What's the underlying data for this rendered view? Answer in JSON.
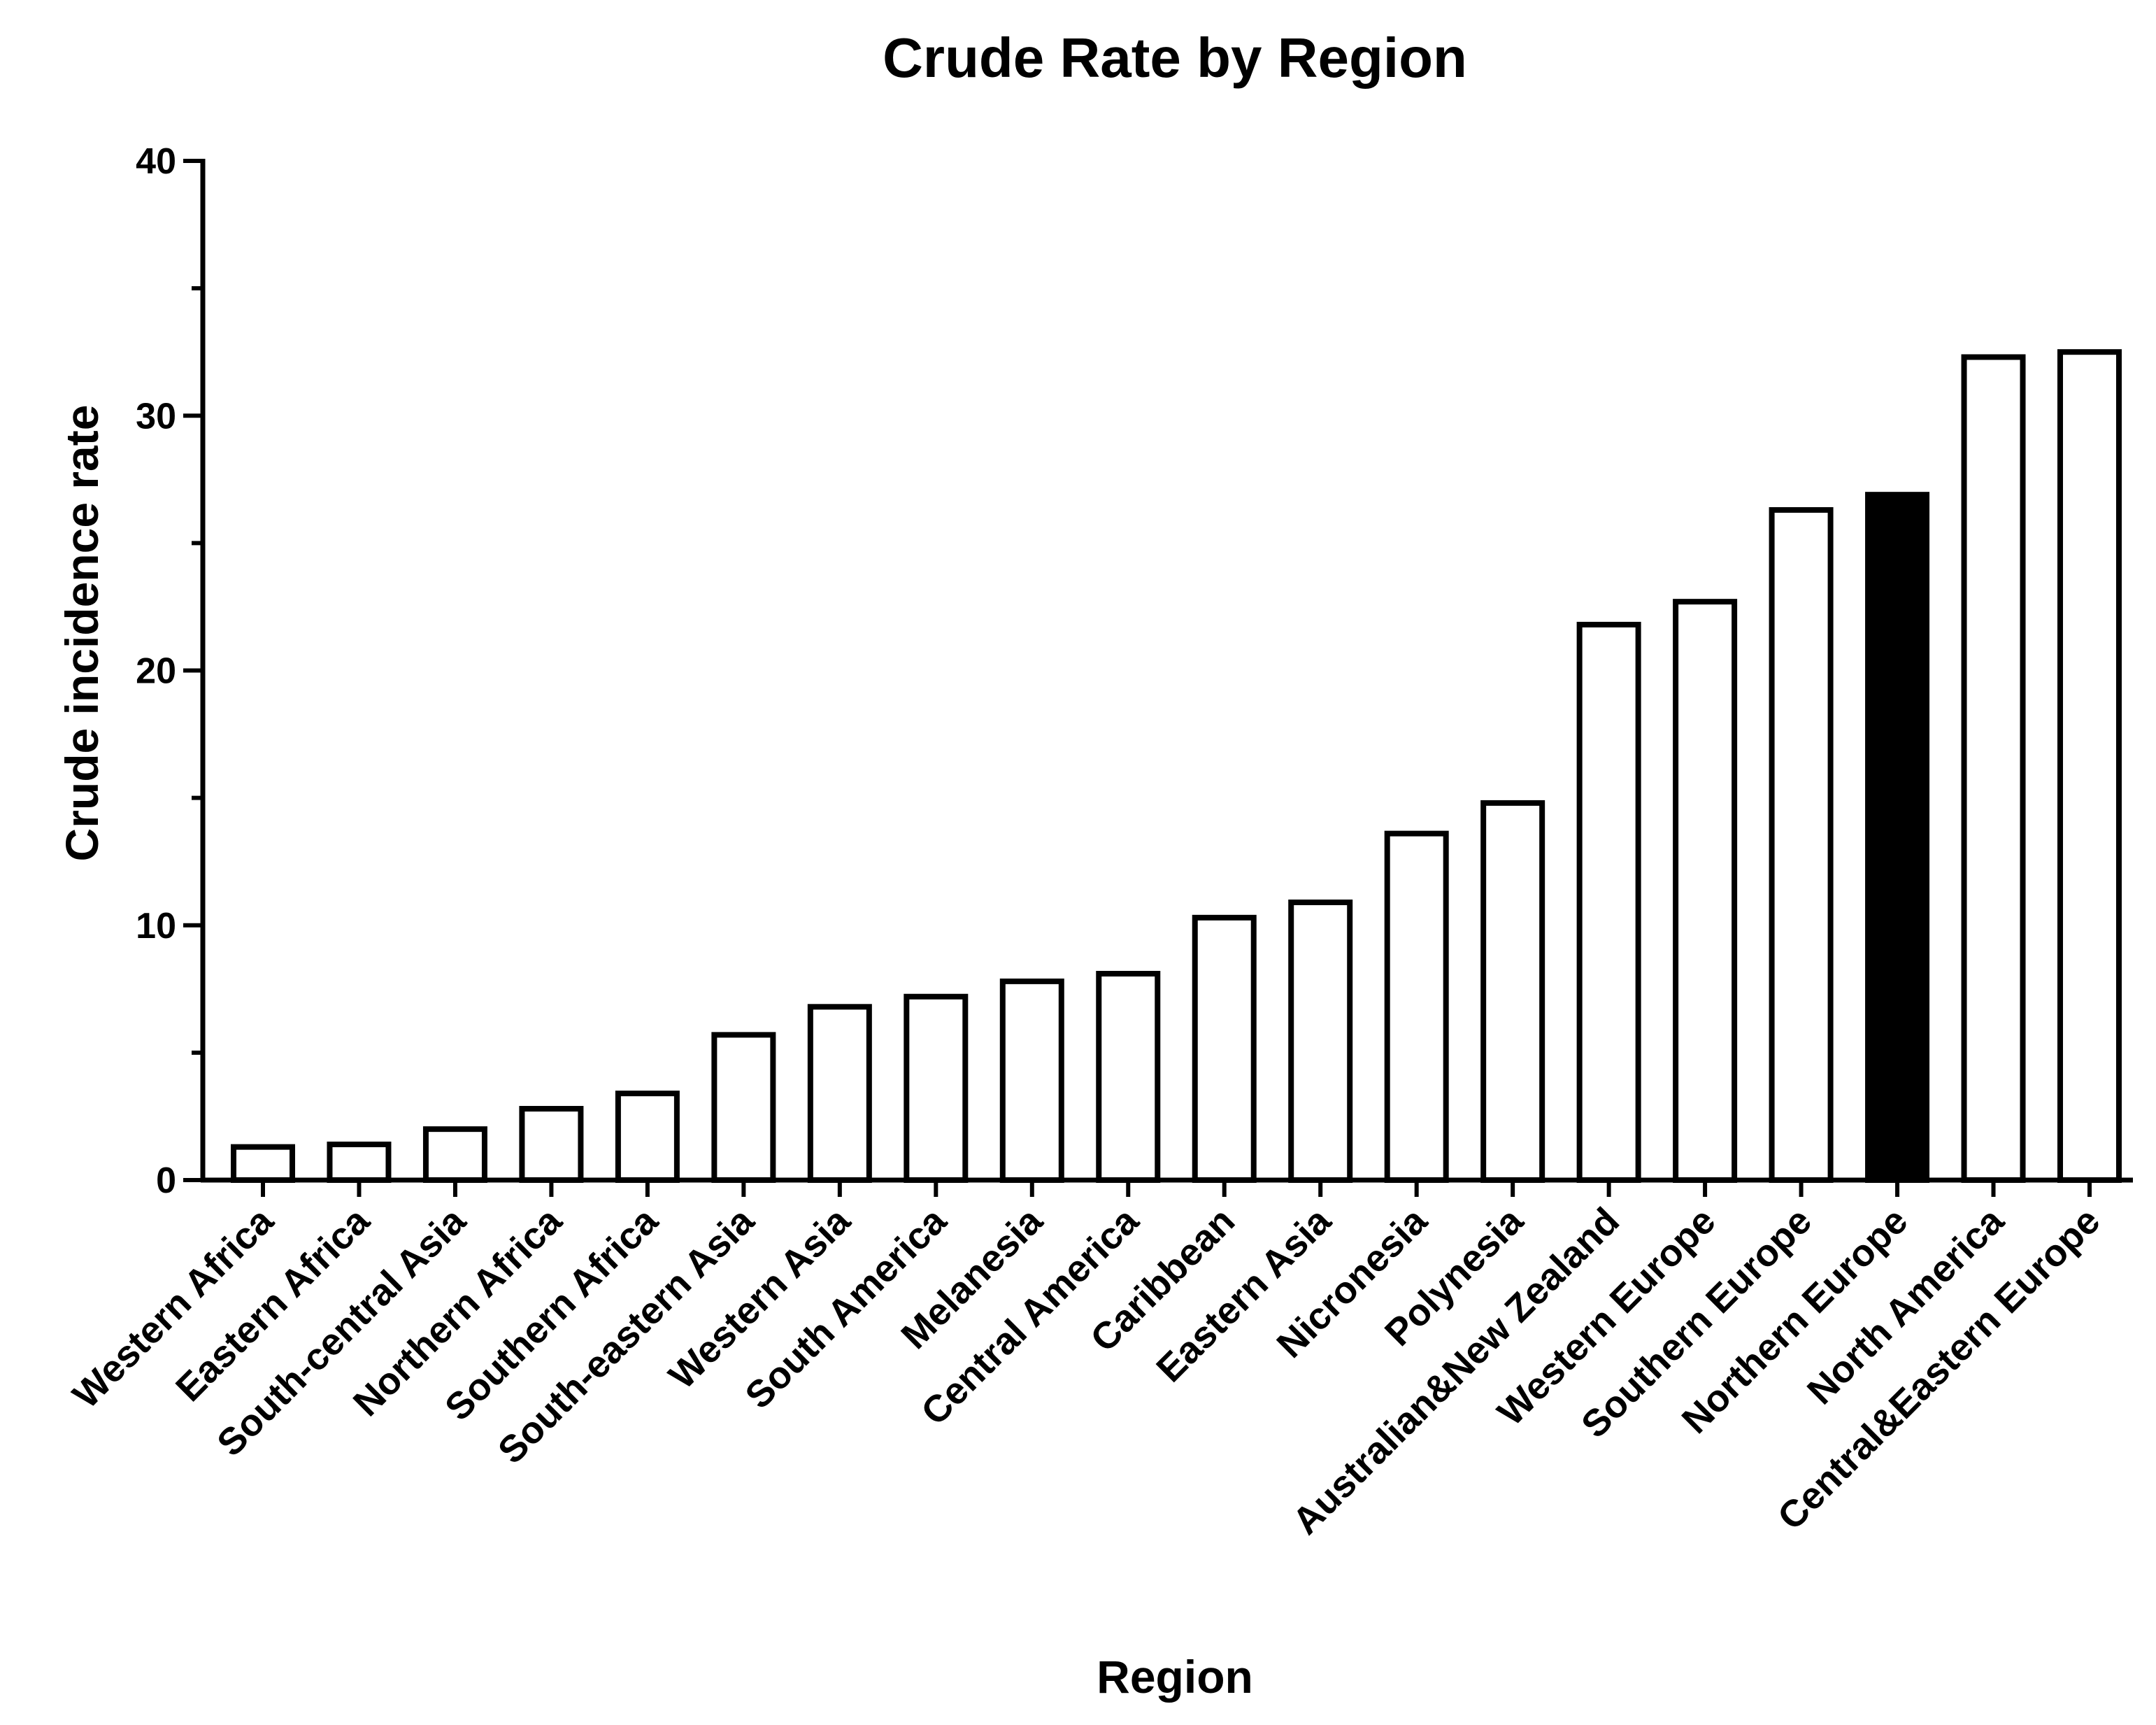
{
  "chart_data": {
    "type": "bar",
    "title": "Crude Rate by Region",
    "xlabel": "Region",
    "ylabel": "Crude incidence rate",
    "ylim": [
      0,
      40
    ],
    "yticks": [
      0,
      10,
      20,
      30,
      40
    ],
    "grid": false,
    "categories": [
      "Western Africa",
      "Eastern Africa",
      "South-central Asia",
      "Northern Africa",
      "Southern Africa",
      "South-eastern Asia",
      "Western Asia",
      "South America",
      "Melanesia",
      "Central America",
      "Caribbean",
      "Eastern Asia",
      "Nicronesia",
      "Polynesia",
      "Australian&New Zealand",
      "Western Europe",
      "Southern Europe",
      "Northern Europe",
      "North America",
      "Central&Eastern Europe"
    ],
    "values": [
      1.3,
      1.4,
      2.0,
      2.8,
      3.4,
      5.7,
      6.8,
      7.2,
      7.8,
      8.1,
      10.3,
      10.9,
      13.6,
      14.8,
      21.8,
      22.7,
      26.3,
      26.9,
      32.3,
      32.5
    ],
    "colors": {
      "default_fill": "#ffffff",
      "highlight_fill": "#000000",
      "stroke": "#000000"
    },
    "highlight": "Northern Europe"
  }
}
